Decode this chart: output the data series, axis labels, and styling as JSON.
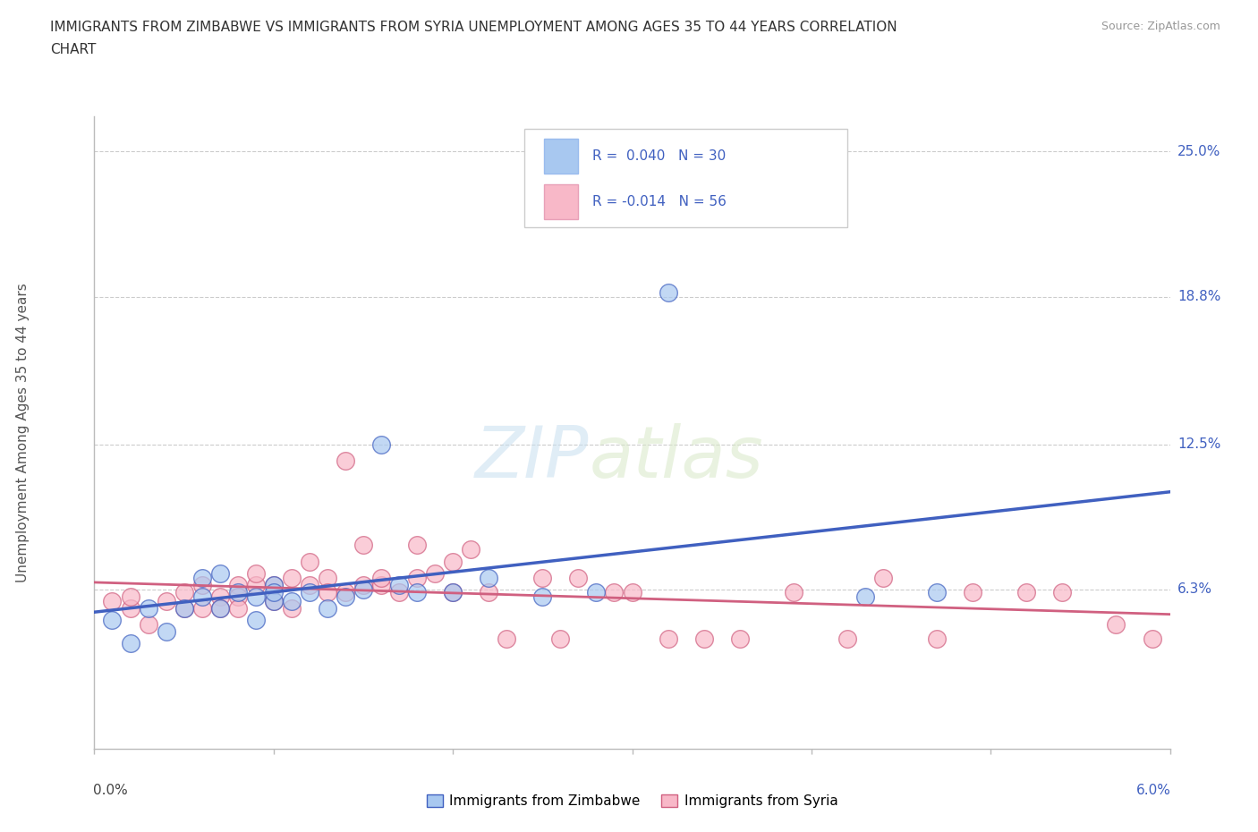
{
  "title_line1": "IMMIGRANTS FROM ZIMBABWE VS IMMIGRANTS FROM SYRIA UNEMPLOYMENT AMONG AGES 35 TO 44 YEARS CORRELATION",
  "title_line2": "CHART",
  "source": "Source: ZipAtlas.com",
  "ylabel_label": "Unemployment Among Ages 35 to 44 years",
  "xlim": [
    0.0,
    0.06
  ],
  "ylim": [
    -0.005,
    0.265
  ],
  "watermark_zip": "ZIP",
  "watermark_atlas": "atlas",
  "legend_zim": "Immigrants from Zimbabwe",
  "legend_syria": "Immigrants from Syria",
  "R_zim": 0.04,
  "N_zim": 30,
  "R_syria": -0.014,
  "N_syria": 56,
  "zim_color": "#a8c8f0",
  "syria_color": "#f8b8c8",
  "zim_edge_color": "#c0d8f8",
  "syria_edge_color": "#f0c0d0",
  "zim_line_color": "#4060c0",
  "syria_line_color": "#d06080",
  "label_color": "#4060c0",
  "background_color": "#ffffff",
  "grid_color": "#cccccc",
  "ytick_positions": [
    0.063,
    0.125,
    0.188,
    0.25
  ],
  "ytick_labels": [
    "6.3%",
    "12.5%",
    "18.8%",
    "25.0%"
  ],
  "xtick_positions": [
    0.0,
    0.01,
    0.02,
    0.03,
    0.04,
    0.05,
    0.06
  ],
  "zim_scatter_x": [
    0.001,
    0.002,
    0.003,
    0.004,
    0.005,
    0.006,
    0.006,
    0.007,
    0.007,
    0.008,
    0.009,
    0.009,
    0.01,
    0.01,
    0.01,
    0.011,
    0.012,
    0.013,
    0.014,
    0.015,
    0.016,
    0.017,
    0.018,
    0.02,
    0.022,
    0.025,
    0.028,
    0.032,
    0.043,
    0.047
  ],
  "zim_scatter_y": [
    0.05,
    0.04,
    0.055,
    0.045,
    0.055,
    0.06,
    0.068,
    0.055,
    0.07,
    0.062,
    0.05,
    0.06,
    0.065,
    0.058,
    0.062,
    0.058,
    0.062,
    0.055,
    0.06,
    0.063,
    0.125,
    0.065,
    0.062,
    0.062,
    0.068,
    0.06,
    0.062,
    0.19,
    0.06,
    0.062
  ],
  "syria_scatter_x": [
    0.001,
    0.002,
    0.002,
    0.003,
    0.004,
    0.005,
    0.005,
    0.006,
    0.006,
    0.007,
    0.007,
    0.008,
    0.008,
    0.008,
    0.009,
    0.009,
    0.01,
    0.01,
    0.011,
    0.011,
    0.012,
    0.012,
    0.013,
    0.013,
    0.014,
    0.014,
    0.015,
    0.015,
    0.016,
    0.016,
    0.017,
    0.018,
    0.018,
    0.019,
    0.02,
    0.02,
    0.021,
    0.022,
    0.023,
    0.025,
    0.026,
    0.027,
    0.029,
    0.03,
    0.032,
    0.034,
    0.036,
    0.039,
    0.042,
    0.044,
    0.047,
    0.049,
    0.052,
    0.054,
    0.057,
    0.059
  ],
  "syria_scatter_y": [
    0.058,
    0.055,
    0.06,
    0.048,
    0.058,
    0.055,
    0.062,
    0.055,
    0.065,
    0.06,
    0.055,
    0.065,
    0.06,
    0.055,
    0.065,
    0.07,
    0.058,
    0.065,
    0.068,
    0.055,
    0.065,
    0.075,
    0.068,
    0.062,
    0.118,
    0.062,
    0.065,
    0.082,
    0.065,
    0.068,
    0.062,
    0.068,
    0.082,
    0.07,
    0.062,
    0.075,
    0.08,
    0.062,
    0.042,
    0.068,
    0.042,
    0.068,
    0.062,
    0.062,
    0.042,
    0.042,
    0.042,
    0.062,
    0.042,
    0.068,
    0.042,
    0.062,
    0.062,
    0.062,
    0.048,
    0.042
  ]
}
